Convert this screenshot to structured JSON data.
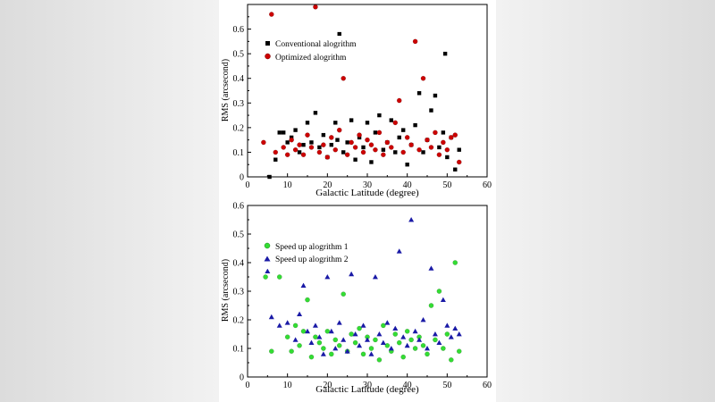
{
  "chart_data": [
    {
      "type": "scatter",
      "xlabel": "Galactic Latitude (degree)",
      "ylabel": "RMS (arcsecond)",
      "xlim": [
        0,
        60
      ],
      "ylim": [
        0,
        0.7
      ],
      "xticks": [
        "0",
        "10",
        "20",
        "30",
        "40",
        "50",
        "60"
      ],
      "yticks": [
        "0",
        "0.1",
        "0.2",
        "0.3",
        "0.4",
        "0.5",
        "0.6"
      ],
      "grid": false,
      "legend_position": "upper-left",
      "series": [
        {
          "name": "Conventional alogrithm",
          "marker": "square",
          "color": "#000000",
          "points": [
            [
              5.5,
              0.0
            ],
            [
              7,
              0.07
            ],
            [
              8,
              0.18
            ],
            [
              9,
              0.18
            ],
            [
              10,
              0.14
            ],
            [
              11,
              0.16
            ],
            [
              12,
              0.19
            ],
            [
              13,
              0.1
            ],
            [
              14,
              0.13
            ],
            [
              15,
              0.22
            ],
            [
              16,
              0.14
            ],
            [
              17,
              0.26
            ],
            [
              18,
              0.12
            ],
            [
              19,
              0.17
            ],
            [
              20,
              0.08
            ],
            [
              21,
              0.13
            ],
            [
              22,
              0.22
            ],
            [
              22.5,
              0.15
            ],
            [
              23,
              0.58
            ],
            [
              24,
              0.1
            ],
            [
              25,
              0.14
            ],
            [
              26,
              0.23
            ],
            [
              27,
              0.07
            ],
            [
              28,
              0.16
            ],
            [
              29,
              0.12
            ],
            [
              30,
              0.22
            ],
            [
              31,
              0.06
            ],
            [
              32,
              0.18
            ],
            [
              33,
              0.25
            ],
            [
              34,
              0.11
            ],
            [
              35,
              0.14
            ],
            [
              36,
              0.23
            ],
            [
              37,
              0.1
            ],
            [
              38,
              0.16
            ],
            [
              39,
              0.19
            ],
            [
              40,
              0.05
            ],
            [
              41,
              0.13
            ],
            [
              42,
              0.21
            ],
            [
              43,
              0.34
            ],
            [
              44,
              0.1
            ],
            [
              45,
              0.15
            ],
            [
              46,
              0.27
            ],
            [
              47,
              0.33
            ],
            [
              48,
              0.12
            ],
            [
              49,
              0.18
            ],
            [
              49.5,
              0.5
            ],
            [
              50,
              0.08
            ],
            [
              51,
              0.16
            ],
            [
              52,
              0.03
            ],
            [
              53,
              0.11
            ]
          ]
        },
        {
          "name": "Optimized alogrithm",
          "marker": "circle",
          "color": "#cc0000",
          "points": [
            [
              4,
              0.14
            ],
            [
              6,
              0.66
            ],
            [
              7,
              0.1
            ],
            [
              9,
              0.12
            ],
            [
              10,
              0.09
            ],
            [
              11,
              0.15
            ],
            [
              12,
              0.11
            ],
            [
              13,
              0.13
            ],
            [
              14,
              0.09
            ],
            [
              15,
              0.17
            ],
            [
              16,
              0.12
            ],
            [
              17,
              0.69
            ],
            [
              18,
              0.1
            ],
            [
              19,
              0.13
            ],
            [
              20,
              0.08
            ],
            [
              21,
              0.16
            ],
            [
              22,
              0.11
            ],
            [
              23,
              0.19
            ],
            [
              24,
              0.4
            ],
            [
              25,
              0.09
            ],
            [
              26,
              0.14
            ],
            [
              27,
              0.12
            ],
            [
              28,
              0.17
            ],
            [
              29,
              0.1
            ],
            [
              30,
              0.15
            ],
            [
              31,
              0.13
            ],
            [
              32,
              0.11
            ],
            [
              33,
              0.18
            ],
            [
              34,
              0.09
            ],
            [
              35,
              0.14
            ],
            [
              36,
              0.12
            ],
            [
              37,
              0.22
            ],
            [
              38,
              0.31
            ],
            [
              39,
              0.1
            ],
            [
              40,
              0.16
            ],
            [
              41,
              0.13
            ],
            [
              42,
              0.55
            ],
            [
              43,
              0.11
            ],
            [
              44,
              0.4
            ],
            [
              45,
              0.15
            ],
            [
              46,
              0.12
            ],
            [
              47,
              0.18
            ],
            [
              48,
              0.09
            ],
            [
              49,
              0.14
            ],
            [
              50,
              0.11
            ],
            [
              51,
              0.16
            ],
            [
              52,
              0.17
            ],
            [
              53,
              0.06
            ]
          ]
        }
      ]
    },
    {
      "type": "scatter",
      "xlabel": "Galactic Latitude (degree)",
      "ylabel": "RMS (arcsecond)",
      "xlim": [
        0,
        60
      ],
      "ylim": [
        0,
        0.6
      ],
      "xticks": [
        "0",
        "10",
        "20",
        "30",
        "40",
        "50",
        "60"
      ],
      "yticks": [
        "0",
        "0.1",
        "0.2",
        "0.3",
        "0.4",
        "0.5",
        "0.6"
      ],
      "grid": false,
      "legend_position": "upper-left",
      "series": [
        {
          "name": "Speed up alogrithm 1",
          "marker": "circle",
          "color": "#33dd33",
          "points": [
            [
              4.5,
              0.35
            ],
            [
              6,
              0.09
            ],
            [
              8,
              0.35
            ],
            [
              10,
              0.14
            ],
            [
              11,
              0.09
            ],
            [
              12,
              0.18
            ],
            [
              13,
              0.11
            ],
            [
              14,
              0.16
            ],
            [
              15,
              0.27
            ],
            [
              16,
              0.07
            ],
            [
              17,
              0.14
            ],
            [
              18,
              0.12
            ],
            [
              19,
              0.1
            ],
            [
              20,
              0.16
            ],
            [
              21,
              0.08
            ],
            [
              22,
              0.13
            ],
            [
              23,
              0.11
            ],
            [
              24,
              0.29
            ],
            [
              25,
              0.09
            ],
            [
              26,
              0.15
            ],
            [
              27,
              0.12
            ],
            [
              28,
              0.17
            ],
            [
              29,
              0.08
            ],
            [
              30,
              0.14
            ],
            [
              31,
              0.1
            ],
            [
              32,
              0.13
            ],
            [
              33,
              0.06
            ],
            [
              34,
              0.18
            ],
            [
              35,
              0.11
            ],
            [
              36,
              0.09
            ],
            [
              37,
              0.15
            ],
            [
              38,
              0.12
            ],
            [
              39,
              0.07
            ],
            [
              40,
              0.16
            ],
            [
              41,
              0.13
            ],
            [
              42,
              0.1
            ],
            [
              43,
              0.14
            ],
            [
              44,
              0.11
            ],
            [
              45,
              0.08
            ],
            [
              46,
              0.25
            ],
            [
              47,
              0.13
            ],
            [
              48,
              0.3
            ],
            [
              49,
              0.1
            ],
            [
              50,
              0.15
            ],
            [
              51,
              0.06
            ],
            [
              52,
              0.4
            ],
            [
              53,
              0.09
            ]
          ]
        },
        {
          "name": "Speed up alogrithm 2",
          "marker": "triangle",
          "color": "#1a1aa6",
          "points": [
            [
              4,
              0.41
            ],
            [
              5,
              0.37
            ],
            [
              6,
              0.21
            ],
            [
              8,
              0.18
            ],
            [
              10,
              0.19
            ],
            [
              12,
              0.13
            ],
            [
              13,
              0.22
            ],
            [
              14,
              0.32
            ],
            [
              15,
              0.16
            ],
            [
              16,
              0.12
            ],
            [
              17,
              0.18
            ],
            [
              18,
              0.14
            ],
            [
              19,
              0.08
            ],
            [
              20,
              0.35
            ],
            [
              21,
              0.16
            ],
            [
              22,
              0.1
            ],
            [
              23,
              0.19
            ],
            [
              24,
              0.13
            ],
            [
              25,
              0.09
            ],
            [
              26,
              0.36
            ],
            [
              27,
              0.15
            ],
            [
              28,
              0.11
            ],
            [
              29,
              0.18
            ],
            [
              30,
              0.13
            ],
            [
              31,
              0.08
            ],
            [
              32,
              0.35
            ],
            [
              33,
              0.15
            ],
            [
              34,
              0.12
            ],
            [
              35,
              0.19
            ],
            [
              36,
              0.1
            ],
            [
              37,
              0.17
            ],
            [
              38,
              0.44
            ],
            [
              39,
              0.14
            ],
            [
              40,
              0.11
            ],
            [
              41,
              0.55
            ],
            [
              42,
              0.16
            ],
            [
              43,
              0.13
            ],
            [
              44,
              0.2
            ],
            [
              45,
              0.1
            ],
            [
              46,
              0.38
            ],
            [
              47,
              0.15
            ],
            [
              48,
              0.12
            ],
            [
              49,
              0.27
            ],
            [
              50,
              0.18
            ],
            [
              51,
              0.14
            ],
            [
              52,
              0.17
            ],
            [
              53,
              0.15
            ]
          ]
        }
      ]
    }
  ]
}
